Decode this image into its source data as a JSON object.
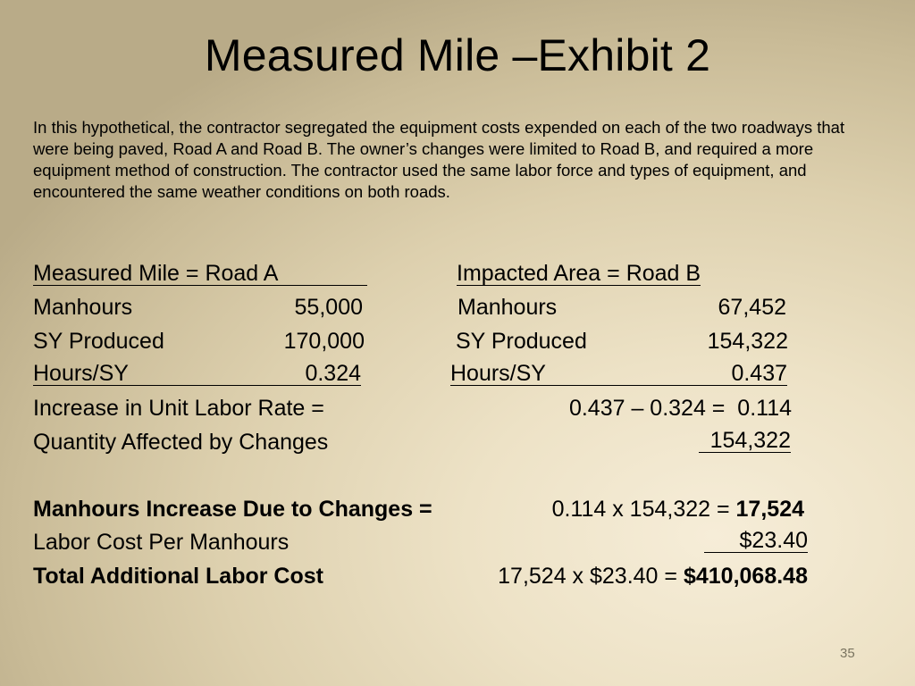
{
  "slide": {
    "title": "Measured Mile –Exhibit 2",
    "intro": "In this hypothetical, the contractor segregated the equipment costs expended on each of the two roadways that were being paved, Road A and Road B. The owner’s changes were limited to Road B, and required a more equipment method of construction. The contractor used the same labor force and types of equipment, and encountered the same weather conditions on both roads.",
    "page_number": "35"
  },
  "measured_mile": {
    "header": "Measured Mile = Road A",
    "manhours_label": "Manhours",
    "manhours_value": "55,000",
    "sy_label": "SY Produced",
    "sy_value": "170,000",
    "hours_sy_label": "Hours/SY",
    "hours_sy_value": "0.324"
  },
  "impacted_area": {
    "header": "Impacted Area = Road B",
    "manhours_label": "Manhours",
    "manhours_value": "67,452",
    "sy_label": "SY Produced",
    "sy_value": "154,322",
    "hours_sy_label": "Hours/SY",
    "hours_sy_value": "0.437"
  },
  "calc": {
    "increase_label": "Increase in Unit Labor Rate =",
    "increase_expr": "0.437 – 0.324 =  0.114",
    "quantity_label": "Quantity Affected by Changes",
    "quantity_value": "154,322",
    "mh_increase_label": "Manhours Increase Due to Changes =",
    "mh_increase_expr": "0.114 x 154,322 =",
    "mh_increase_result": "17,524",
    "labor_cost_label": "Labor Cost Per Manhours",
    "labor_cost_value": "$23.40",
    "total_label": "Total Additional Labor Cost",
    "total_expr": "17,524 x $23.40 =",
    "total_result": "$410,068.48"
  }
}
